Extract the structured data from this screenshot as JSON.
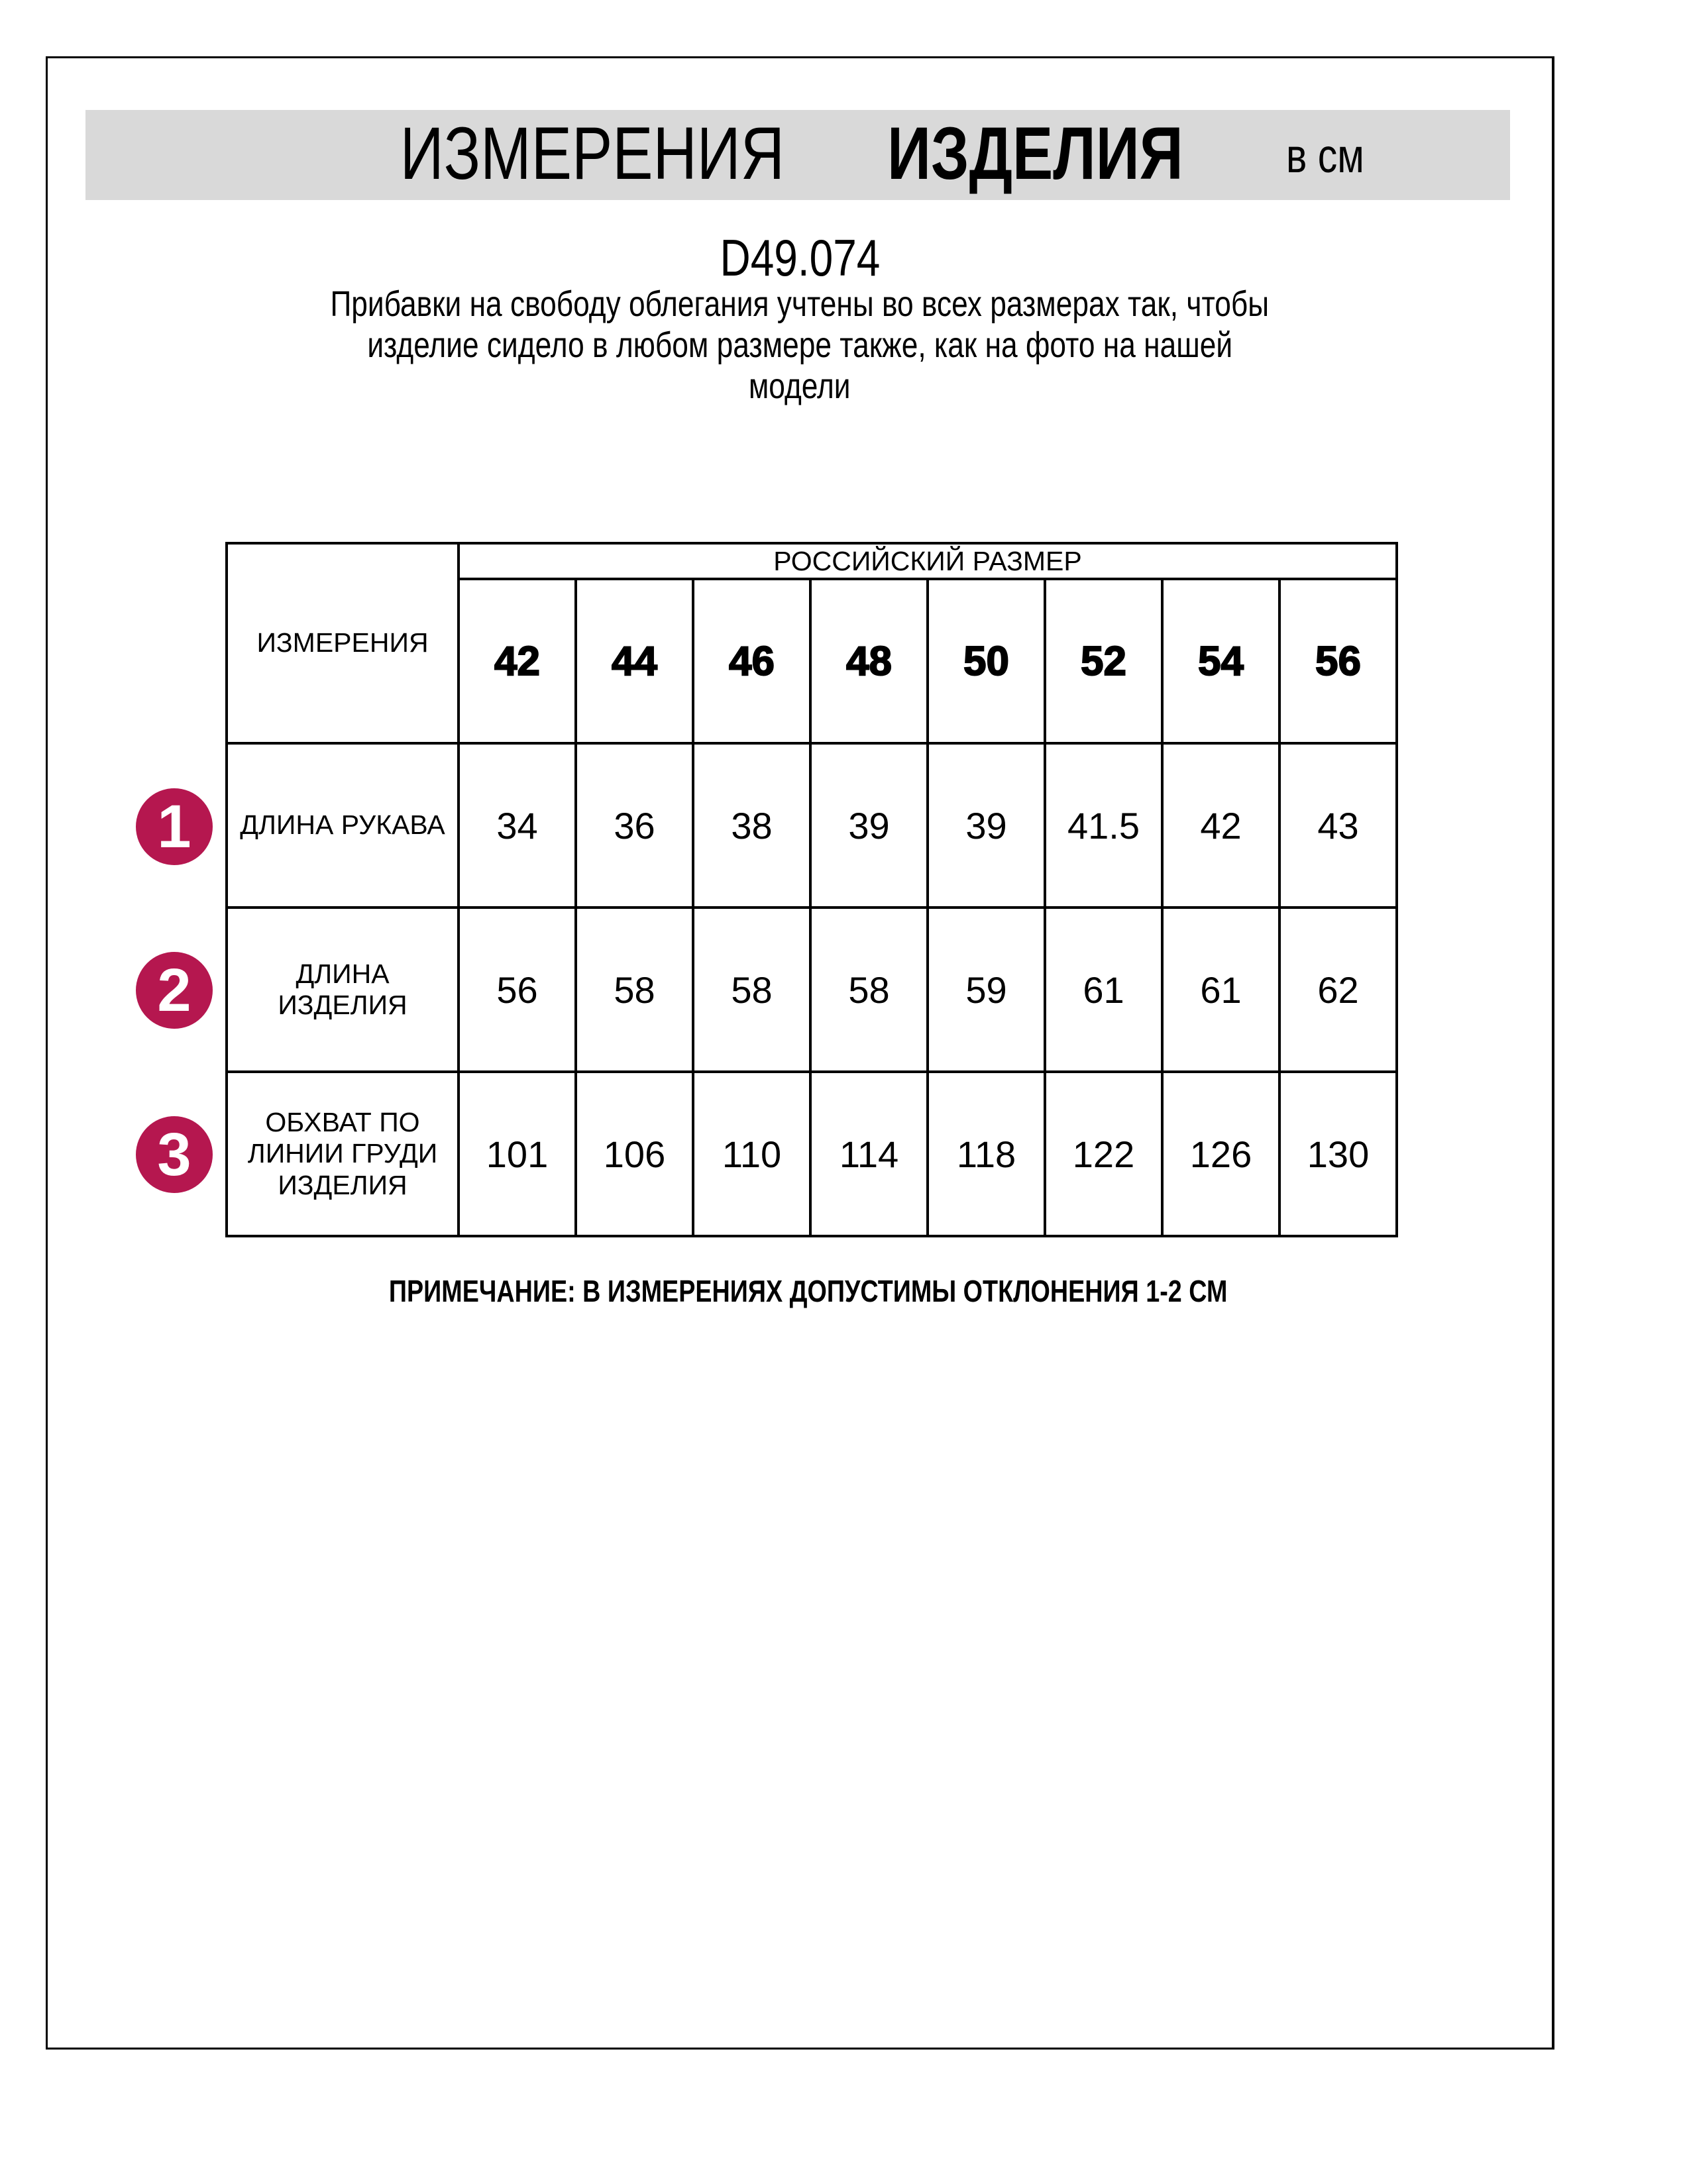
{
  "header": {
    "title_regular": "ИЗМЕРЕНИЯ",
    "title_bold": "ИЗДЕЛИЯ",
    "unit": "в см",
    "banner_color": "#d9d9d9"
  },
  "product_code": "D49.074",
  "description_lines": [
    "Прибавки на свободу облегания учтены во всех размерах так, чтобы",
    "изделие сидело в любом размере также, как на фото на нашей",
    "модели"
  ],
  "table": {
    "measure_header": "ИЗМЕРЕНИЯ",
    "size_group_header": "РОССИЙСКИЙ РАЗМЕР",
    "sizes": [
      "42",
      "44",
      "46",
      "48",
      "50",
      "52",
      "54",
      "56"
    ],
    "rows": [
      {
        "marker": "1",
        "label": "ДЛИНА РУКАВА",
        "values": [
          "34",
          "36",
          "38",
          "39",
          "39",
          "41.5",
          "42",
          "43"
        ]
      },
      {
        "marker": "2",
        "label": "ДЛИНА ИЗДЕЛИЯ",
        "values": [
          "56",
          "58",
          "58",
          "58",
          "59",
          "61",
          "61",
          "62"
        ]
      },
      {
        "marker": "3",
        "label": "ОБХВАТ ПО ЛИНИИ ГРУДИ ИЗДЕЛИЯ",
        "values": [
          "101",
          "106",
          "110",
          "114",
          "118",
          "122",
          "126",
          "130"
        ]
      }
    ],
    "marker_color": "#b5174f"
  },
  "note": "ПРИМЕЧАНИЕ: В ИЗМЕРЕНИЯХ ДОПУСТИМЫ ОТКЛОНЕНИЯ 1-2 СМ"
}
